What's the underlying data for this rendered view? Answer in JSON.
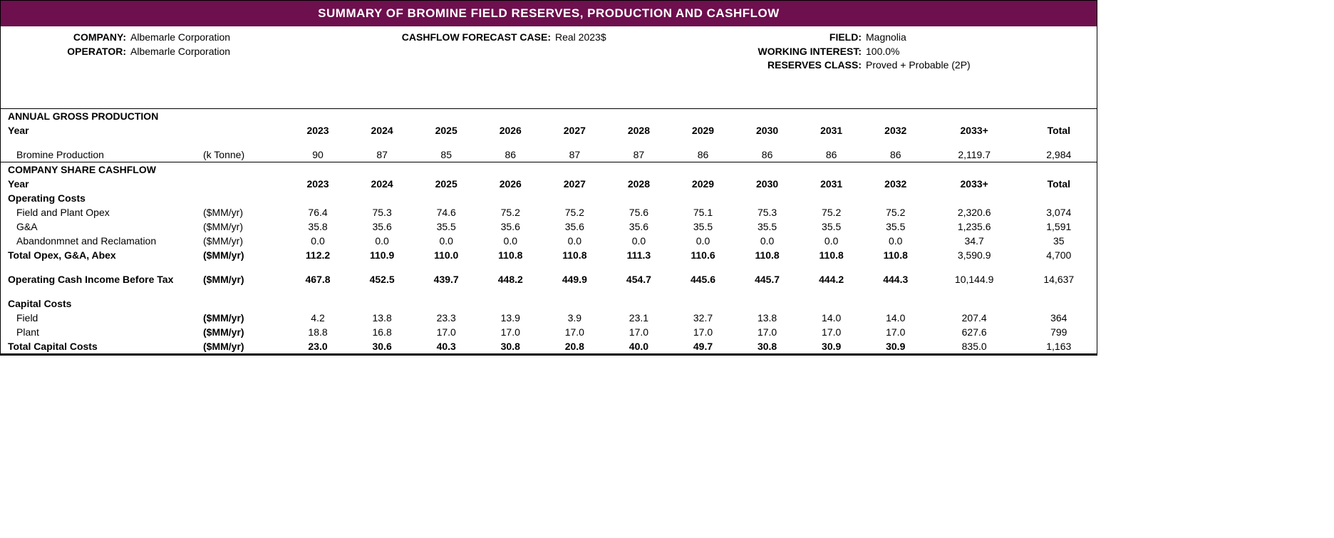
{
  "title": "SUMMARY OF BROMINE FIELD RESERVES, PRODUCTION AND CASHFLOW",
  "header": {
    "company_label": "COMPANY:",
    "company": "Albemarle Corporation",
    "operator_label": "OPERATOR:",
    "operator": "Albemarle Corporation",
    "case_label": "CASHFLOW  FORECAST CASE:",
    "case": "Real 2023$",
    "field_label": "FIELD:",
    "field": "Magnolia",
    "wi_label": "WORKING INTEREST:",
    "wi": "100.0%",
    "class_label": "RESERVES CLASS:",
    "class": "Proved + Probable (2P)"
  },
  "years": [
    "2023",
    "2024",
    "2025",
    "2026",
    "2027",
    "2028",
    "2029",
    "2030",
    "2031",
    "2032",
    "2033+",
    "Total"
  ],
  "sections": {
    "prod_title": "ANNUAL GROSS PRODUCTION",
    "year_label": "Year",
    "bromine_label": "Bromine Production",
    "bromine_unit": "(k Tonne)",
    "bromine": [
      "90",
      "87",
      "85",
      "86",
      "87",
      "87",
      "86",
      "86",
      "86",
      "86",
      "2,119.7",
      "2,984"
    ],
    "cash_title": "COMPANY SHARE CASHFLOW",
    "opcosts_label": "Operating Costs",
    "fpo_label": "Field and Plant Opex",
    "fpo_unit": "($MM/yr)",
    "fpo": [
      "76.4",
      "75.3",
      "74.6",
      "75.2",
      "75.2",
      "75.6",
      "75.1",
      "75.3",
      "75.2",
      "75.2",
      "2,320.6",
      "3,074"
    ],
    "ga_label": "G&A",
    "ga_unit": "($MM/yr)",
    "ga": [
      "35.8",
      "35.6",
      "35.5",
      "35.6",
      "35.6",
      "35.6",
      "35.5",
      "35.5",
      "35.5",
      "35.5",
      "1,235.6",
      "1,591"
    ],
    "ar_label": "Abandonmnet and Reclamation",
    "ar_unit": "($MM/yr)",
    "ar": [
      "0.0",
      "0.0",
      "0.0",
      "0.0",
      "0.0",
      "0.0",
      "0.0",
      "0.0",
      "0.0",
      "0.0",
      "34.7",
      "35"
    ],
    "tot_opex_label": "Total Opex, G&A, Abex",
    "tot_opex_unit": "($MM/yr)",
    "tot_opex": [
      "112.2",
      "110.9",
      "110.0",
      "110.8",
      "110.8",
      "111.3",
      "110.6",
      "110.8",
      "110.8",
      "110.8",
      "3,590.9",
      "4,700"
    ],
    "ocibt_label": "Operating Cash Income Before Tax",
    "ocibt_unit": "($MM/yr)",
    "ocibt": [
      "467.8",
      "452.5",
      "439.7",
      "448.2",
      "449.9",
      "454.7",
      "445.6",
      "445.7",
      "444.2",
      "444.3",
      "10,144.9",
      "14,637"
    ],
    "cap_label": "Capital Costs",
    "cfield_label": "Field",
    "cfield_unit": "($MM/yr)",
    "cfield": [
      "4.2",
      "13.8",
      "23.3",
      "13.9",
      "3.9",
      "23.1",
      "32.7",
      "13.8",
      "14.0",
      "14.0",
      "207.4",
      "364"
    ],
    "cplant_label": "Plant",
    "cplant_unit": "($MM/yr)",
    "cplant": [
      "18.8",
      "16.8",
      "17.0",
      "17.0",
      "17.0",
      "17.0",
      "17.0",
      "17.0",
      "17.0",
      "17.0",
      "627.6",
      "799"
    ],
    "tcap_label": "Total Capital Costs",
    "tcap_unit": "($MM/yr)",
    "tcap": [
      "23.0",
      "30.6",
      "40.3",
      "30.8",
      "20.8",
      "40.0",
      "49.7",
      "30.8",
      "30.9",
      "30.9",
      "835.0",
      "1,163"
    ]
  },
  "colors": {
    "title_bg": "#6e0f4e",
    "title_fg": "#ffffff",
    "border": "#000000"
  }
}
